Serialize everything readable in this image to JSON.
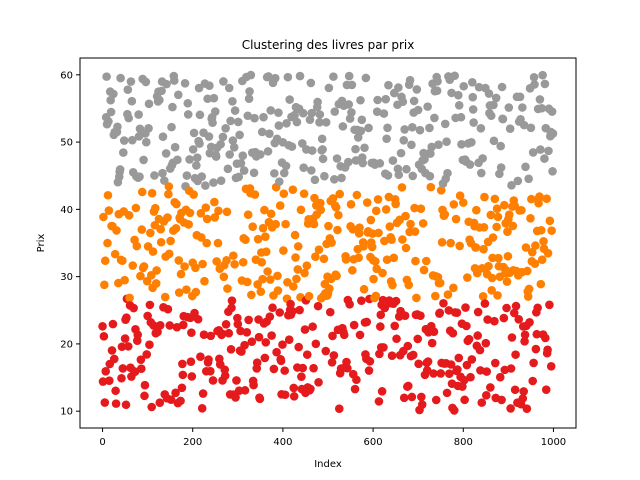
{
  "chart_data": {
    "type": "scatter",
    "title": "Clustering des livres par prix",
    "xlabel": "Index",
    "ylabel": "Prix",
    "xlim": [
      -50,
      1050
    ],
    "ylim": [
      7.5,
      62.5
    ],
    "xticks": [
      0,
      200,
      400,
      600,
      800,
      1000
    ],
    "yticks": [
      10,
      20,
      30,
      40,
      50,
      60
    ],
    "grid": false,
    "n_points": 1000,
    "series": [
      {
        "color": "#e41a1c",
        "range": [
          10,
          26.7
        ],
        "count": 333
      },
      {
        "color": "#ff7f00",
        "range": [
          26.7,
          43.4
        ],
        "count": 333
      },
      {
        "color": "#999999",
        "range": [
          43.4,
          60
        ],
        "count": 334
      }
    ]
  }
}
